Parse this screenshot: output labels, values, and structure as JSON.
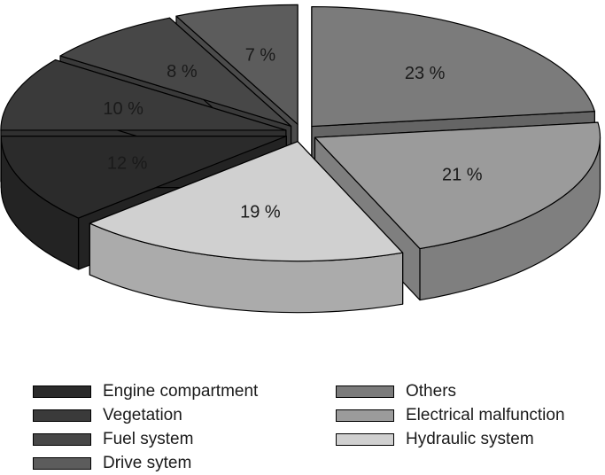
{
  "chart_data": {
    "type": "pie",
    "three_d": true,
    "exploded": true,
    "legend_position": "bottom",
    "slices": [
      {
        "name": "Others",
        "value": 23,
        "label": "23 %",
        "color": "#7b7b7b"
      },
      {
        "name": "Electrical malfunction",
        "value": 21,
        "label": "21 %",
        "color": "#9b9b9b"
      },
      {
        "name": "Hydraulic system",
        "value": 19,
        "label": "19 %",
        "color": "#d0d0d0"
      },
      {
        "name": "Engine compartment",
        "value": 12,
        "label": "12 %",
        "color": "#2b2b2b"
      },
      {
        "name": "Vegetation",
        "value": 10,
        "label": "10 %",
        "color": "#3a3a3a"
      },
      {
        "name": "Fuel system",
        "value": 8,
        "label": "8 %",
        "color": "#474747"
      },
      {
        "name": "Drive sytem",
        "value": 7,
        "label": "7 %",
        "color": "#5c5c5c"
      }
    ]
  },
  "legend": {
    "left": [
      {
        "label": "Engine compartment",
        "color": "#2b2b2b"
      },
      {
        "label": "Vegetation",
        "color": "#3a3a3a"
      },
      {
        "label": "Fuel system",
        "color": "#474747"
      },
      {
        "label": "Drive sytem",
        "color": "#5c5c5c"
      }
    ],
    "right": [
      {
        "label": "Others",
        "color": "#7b7b7b"
      },
      {
        "label": "Electrical malfunction",
        "color": "#9b9b9b"
      },
      {
        "label": "Hydraulic system",
        "color": "#d0d0d0"
      }
    ]
  }
}
